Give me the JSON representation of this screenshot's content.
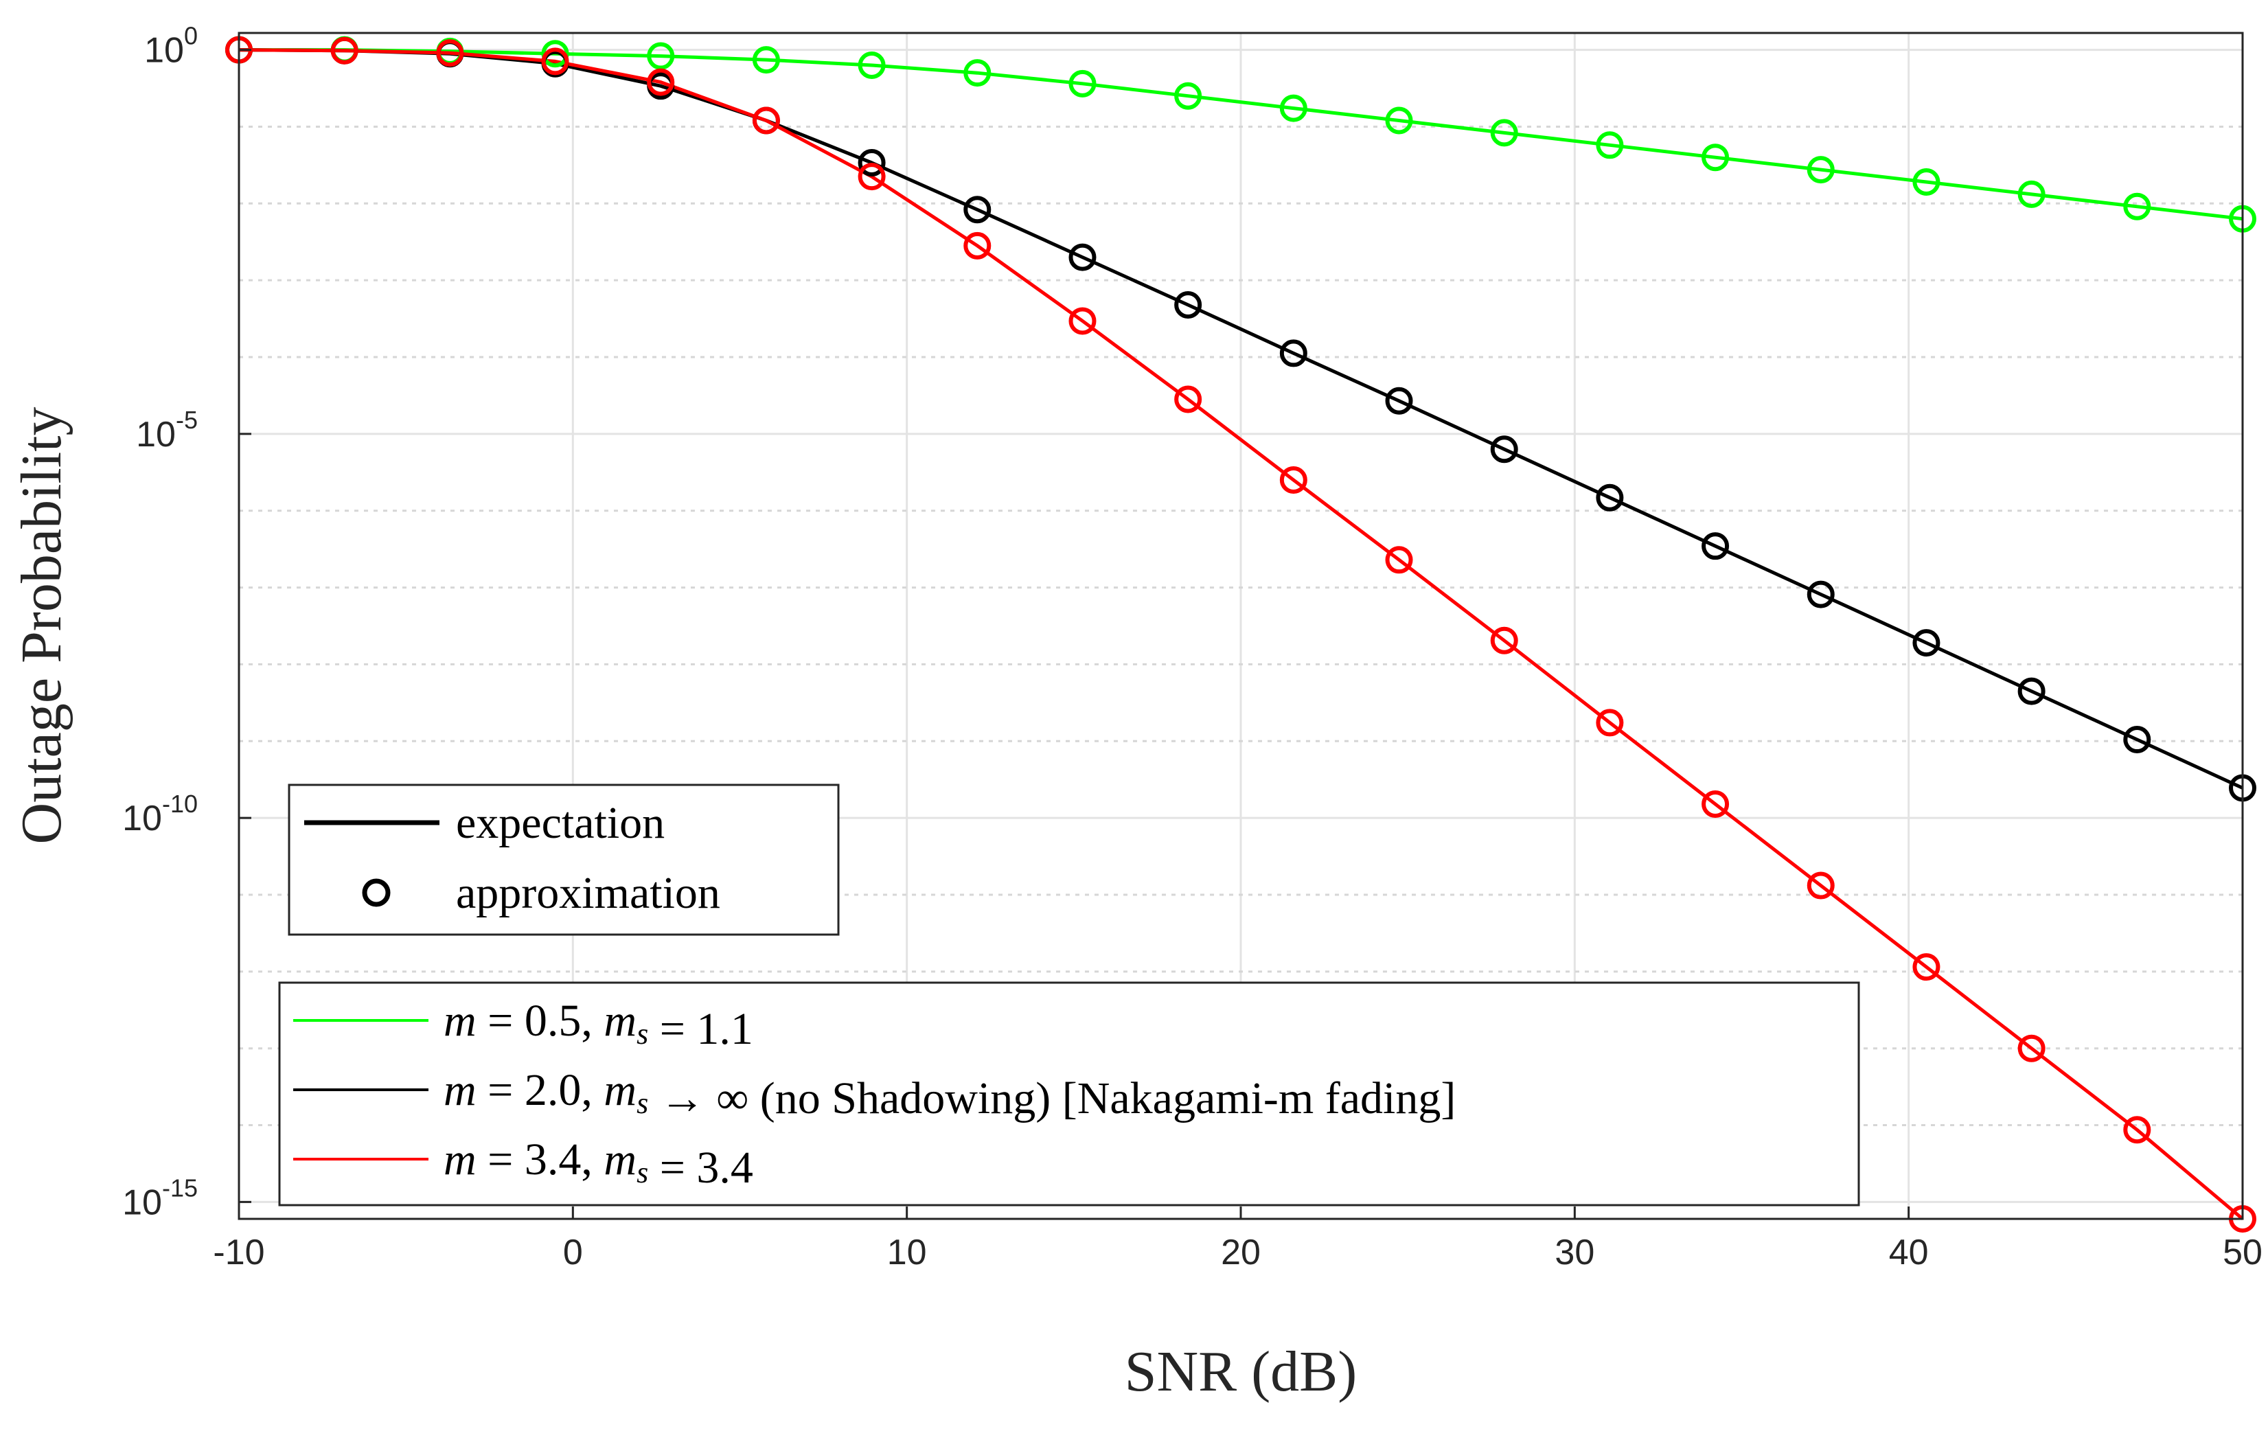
{
  "chart_data": {
    "type": "line",
    "xlabel": "SNR (dB)",
    "ylabel": "Outage Probability",
    "xlim": [
      -10,
      50
    ],
    "ylim_log10": [
      -15,
      0
    ],
    "yscale": "log",
    "grid": true,
    "x_ticks": [
      "-10",
      "0",
      "10",
      "20",
      "30",
      "40",
      "50"
    ],
    "y_ticks": [
      {
        "base": "10",
        "exp": "0"
      },
      {
        "base": "10",
        "exp": "-5"
      },
      {
        "base": "10",
        "exp": "-10"
      },
      {
        "base": "10",
        "exp": "-15"
      }
    ],
    "marker_x": [
      -10,
      -6.84,
      -3.68,
      -0.53,
      2.63,
      5.79,
      8.95,
      12.11,
      15.26,
      18.42,
      21.58,
      24.74,
      27.89,
      31.05,
      34.21,
      37.37,
      40.53,
      43.68,
      46.84,
      50
    ],
    "series": [
      {
        "name": "m = 0.5, m_s = 1.1",
        "color": "#00ff00",
        "x": [
          -10,
          -6.84,
          -3.68,
          -0.53,
          2.63,
          5.79,
          8.95,
          12.11,
          15.26,
          18.42,
          21.58,
          24.74,
          27.89,
          31.05,
          34.21,
          37.37,
          40.53,
          43.68,
          46.84,
          50
        ],
        "log10_y": [
          0,
          0,
          -0.02,
          -0.05,
          -0.08,
          -0.13,
          -0.2,
          -0.3,
          -0.44,
          -0.6,
          -0.76,
          -0.92,
          -1.08,
          -1.24,
          -1.4,
          -1.56,
          -1.72,
          -1.88,
          -2.04,
          -2.2
        ]
      },
      {
        "name": "m = 2.0, m_s → ∞ (no Shadowing) [Nakagami-m fading]",
        "color": "#000000",
        "x": [
          -10,
          -6.84,
          -3.68,
          -0.53,
          2.63,
          5.79,
          8.95,
          12.11,
          15.26,
          18.42,
          21.58,
          24.74,
          27.89,
          31.05,
          34.21,
          37.37,
          40.53,
          43.68,
          46.84,
          50
        ],
        "log10_y": [
          0,
          -0.01,
          -0.05,
          -0.18,
          -0.47,
          -0.92,
          -1.47,
          -2.08,
          -2.7,
          -3.32,
          -3.95,
          -4.57,
          -5.2,
          -5.83,
          -6.46,
          -7.09,
          -7.72,
          -8.35,
          -8.98,
          -9.61
        ]
      },
      {
        "name": "m = 3.4, m_s = 3.4",
        "color": "#ff0000",
        "x": [
          -10,
          -6.84,
          -3.68,
          -0.53,
          2.63,
          5.79,
          8.95,
          12.11,
          15.26,
          18.42,
          21.58,
          24.74,
          27.89,
          31.05,
          34.21,
          37.37,
          40.53,
          43.68,
          46.84,
          50
        ],
        "log10_y": [
          0,
          -0.01,
          -0.04,
          -0.15,
          -0.42,
          -0.92,
          -1.65,
          -2.55,
          -3.53,
          -4.55,
          -5.6,
          -6.64,
          -7.69,
          -8.76,
          -9.82,
          -10.88,
          -11.94,
          -13.0,
          -14.06,
          -15.22
        ]
      }
    ]
  },
  "legend_style": {
    "expectation": "expectation",
    "approximation": "approximation"
  },
  "legend_series": [
    {
      "m_val": "0.5",
      "ms_rel": "=",
      "ms_val": "1.1",
      "suffix": "",
      "color": "#00ff00"
    },
    {
      "m_val": "2.0",
      "ms_rel": "→",
      "ms_val": "∞",
      "suffix": "(no Shadowing) [Nakagami-m fading]",
      "color": "#000000"
    },
    {
      "m_val": "3.4",
      "ms_rel": "=",
      "ms_val": "3.4",
      "suffix": "",
      "color": "#ff0000"
    }
  ]
}
